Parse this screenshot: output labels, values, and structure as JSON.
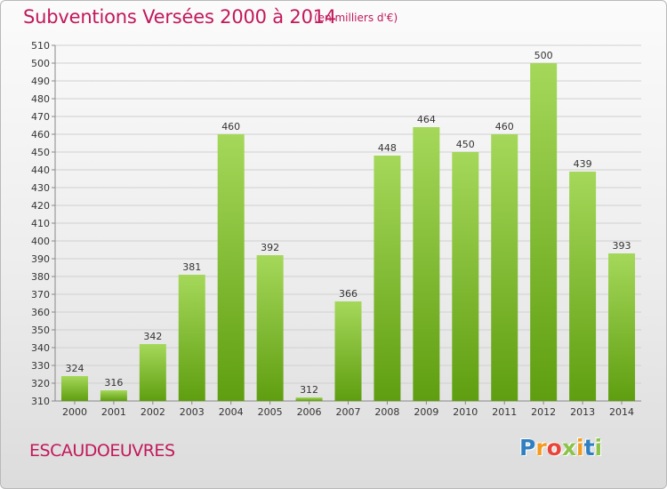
{
  "title": "Subventions Versées 2000 à 2014",
  "subtitle": "(en milliers d'€)",
  "commune": "ESCAUDOEUVRES",
  "logo": {
    "letters": [
      "P",
      "r",
      "o",
      "x",
      "i",
      "t",
      "i"
    ],
    "colors": [
      "#2f7fc1",
      "#f29b1f",
      "#e8443a",
      "#8bc34a",
      "#f29b1f",
      "#2f7fc1",
      "#8bc34a"
    ]
  },
  "colors": {
    "accent": "#c2185b",
    "bar_light": "#a5d85a",
    "bar_dark": "#5f9e10"
  },
  "chart_data": {
    "type": "bar",
    "categories": [
      "2000",
      "2001",
      "2002",
      "2003",
      "2004",
      "2005",
      "2006",
      "2007",
      "2008",
      "2009",
      "2010",
      "2011",
      "2012",
      "2013",
      "2014"
    ],
    "values": [
      324,
      316,
      342,
      381,
      460,
      392,
      312,
      366,
      448,
      464,
      450,
      460,
      500,
      439,
      393
    ],
    "ylim": [
      310,
      510
    ],
    "yticks": [
      310,
      320,
      330,
      340,
      350,
      360,
      370,
      380,
      390,
      400,
      410,
      420,
      430,
      440,
      450,
      460,
      470,
      480,
      490,
      500,
      510
    ],
    "grid": true,
    "legend": false
  }
}
